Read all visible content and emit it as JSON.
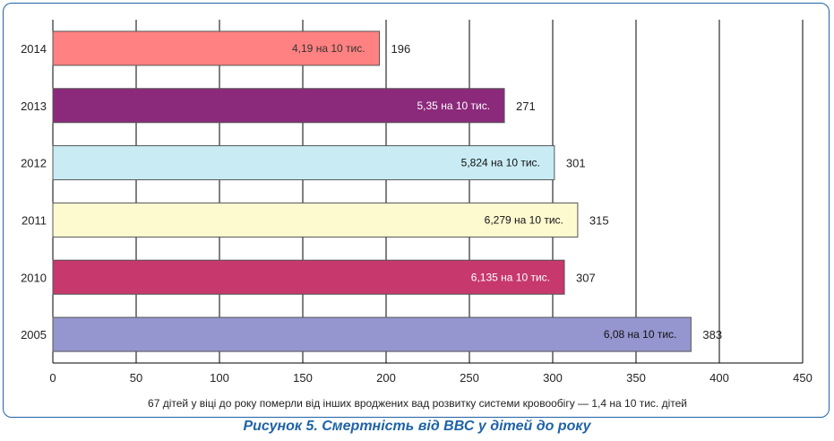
{
  "chart_data": {
    "type": "bar",
    "orientation": "horizontal",
    "categories": [
      "2014",
      "2013",
      "2012",
      "2011",
      "2010",
      "2005"
    ],
    "values": [
      196,
      271,
      301,
      315,
      307,
      383
    ],
    "bar_labels": [
      "4,19 на 10 тис.",
      "5,35 на 10 тис.",
      "5,824 на 10 тис.",
      "6,279 на 10 тис.",
      "6,135 на 10 тис.",
      "6,08 на 10 тис."
    ],
    "value_labels": [
      "196",
      "271",
      "301",
      "315",
      "307",
      "383"
    ],
    "colors": [
      "#ff8181",
      "#8b2a7b",
      "#c9ecf4",
      "#fdfad0",
      "#c7386d",
      "#9595cf"
    ],
    "label_colors": [
      "#333333",
      "#ffffff",
      "#111111",
      "#111111",
      "#ffffff",
      "#111111"
    ],
    "xlim": [
      0,
      450
    ],
    "xticks": [
      0,
      50,
      100,
      150,
      200,
      250,
      300,
      350,
      400,
      450
    ],
    "grid": true,
    "xlabel": "67 дітей у віці до року померли від інших вроджених вад розвитку системи кровообігу — 1,4 на 10 тис. дітей"
  },
  "caption": "Рисунок 5. Смертність від ВВС у дітей до року"
}
